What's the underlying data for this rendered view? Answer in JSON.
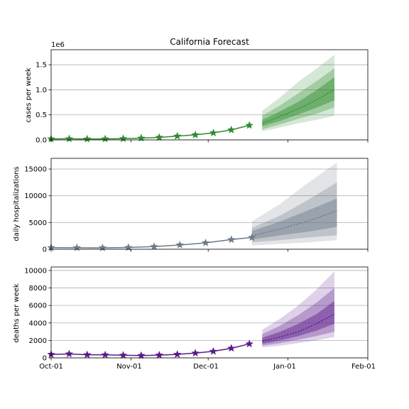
{
  "figure": {
    "title": "California Forecast"
  },
  "x_tick_labels": [
    "Oct-01",
    "Nov-01",
    "Dec-01",
    "Jan-01",
    "Feb-01"
  ],
  "chart_data": [
    {
      "type": "line",
      "name_key": "cases",
      "title": "California Forecast",
      "ylabel": "cases per week",
      "yoffset_label": "1e6",
      "xlim": [
        "2020-10-01",
        "2021-02-01"
      ],
      "ylim": [
        0,
        1800000
      ],
      "yticks": [
        0,
        500000,
        1000000,
        1500000
      ],
      "ytick_labels": [
        "0.0",
        "0.5",
        "1.0",
        "1.5"
      ],
      "grid": "horizontal",
      "color": "#2e8b2e",
      "observed": {
        "x": [
          "2020-10-01",
          "2020-10-08",
          "2020-10-15",
          "2020-10-22",
          "2020-10-29",
          "2020-11-05",
          "2020-11-12",
          "2020-11-19",
          "2020-11-26",
          "2020-12-03",
          "2020-12-10",
          "2020-12-17"
        ],
        "y": [
          20000,
          22000,
          18000,
          20000,
          25000,
          35000,
          50000,
          75000,
          100000,
          140000,
          200000,
          290000
        ]
      },
      "forecast": {
        "x": [
          "2020-12-22",
          "2020-12-29",
          "2021-01-05",
          "2021-01-12",
          "2021-01-19"
        ],
        "median": [
          330000,
          470000,
          620000,
          800000,
          1000000
        ],
        "band_50": [
          [
            270000,
            400000
          ],
          [
            380000,
            570000
          ],
          [
            510000,
            760000
          ],
          [
            640000,
            990000
          ],
          [
            790000,
            1250000
          ]
        ],
        "band_80": [
          [
            210000,
            480000
          ],
          [
            310000,
            690000
          ],
          [
            420000,
            930000
          ],
          [
            520000,
            1170000
          ],
          [
            650000,
            1430000
          ]
        ],
        "band_95": [
          [
            170000,
            580000
          ],
          [
            250000,
            850000
          ],
          [
            330000,
            1160000
          ],
          [
            400000,
            1420000
          ],
          [
            480000,
            1700000
          ]
        ]
      }
    },
    {
      "type": "line",
      "name_key": "hospitalizations",
      "ylabel": "daily hospitalizations",
      "xlim": [
        "2020-10-01",
        "2021-02-01"
      ],
      "ylim": [
        0,
        17000
      ],
      "yticks": [
        0,
        5000,
        10000,
        15000
      ],
      "ytick_labels": [
        "0",
        "5000",
        "10000",
        "15000"
      ],
      "grid": "horizontal",
      "color": "#6c7a89",
      "observed": {
        "x": [
          "2020-10-01",
          "2020-10-11",
          "2020-10-21",
          "2020-10-31",
          "2020-11-10",
          "2020-11-20",
          "2020-11-30",
          "2020-12-10",
          "2020-12-18"
        ],
        "y": [
          300,
          280,
          260,
          330,
          500,
          800,
          1200,
          1800,
          2200
        ]
      },
      "forecast": {
        "x": [
          "2020-12-18",
          "2020-12-29",
          "2021-01-09",
          "2021-01-20"
        ],
        "median": [
          2500,
          3800,
          5300,
          7200
        ],
        "band_50": [
          [
            1800,
            3400
          ],
          [
            2600,
            5200
          ],
          [
            3300,
            7300
          ],
          [
            4200,
            9500
          ]
        ],
        "band_80": [
          [
            1300,
            4000
          ],
          [
            1700,
            6300
          ],
          [
            2200,
            9300
          ],
          [
            2600,
            12500
          ]
        ],
        "band_95": [
          [
            700,
            5200
          ],
          [
            1000,
            8500
          ],
          [
            1300,
            12500
          ],
          [
            1700,
            16200
          ]
        ]
      }
    },
    {
      "type": "line",
      "name_key": "deaths",
      "ylabel": "deaths per week",
      "xlim": [
        "2020-10-01",
        "2021-02-01"
      ],
      "ylim": [
        0,
        10400
      ],
      "yticks": [
        0,
        2000,
        4000,
        6000,
        8000,
        10000
      ],
      "ytick_labels": [
        "0",
        "2000",
        "4000",
        "6000",
        "8000",
        "10000"
      ],
      "grid": "horizontal",
      "color": "#5a1a8a",
      "observed": {
        "x": [
          "2020-10-01",
          "2020-10-08",
          "2020-10-15",
          "2020-10-22",
          "2020-10-29",
          "2020-11-05",
          "2020-11-12",
          "2020-11-19",
          "2020-11-26",
          "2020-12-03",
          "2020-12-10",
          "2020-12-17"
        ],
        "y": [
          400,
          450,
          360,
          350,
          300,
          270,
          320,
          400,
          550,
          750,
          1100,
          1600
        ]
      },
      "forecast": {
        "x": [
          "2020-12-22",
          "2020-12-29",
          "2021-01-05",
          "2021-01-12",
          "2021-01-19"
        ],
        "median": [
          1900,
          2400,
          3000,
          3900,
          5000
        ],
        "band_50": [
          [
            1600,
            2300
          ],
          [
            2000,
            3000
          ],
          [
            2500,
            3900
          ],
          [
            3100,
            5000
          ],
          [
            3900,
            6500
          ]
        ],
        "band_80": [
          [
            1400,
            2700
          ],
          [
            1700,
            3700
          ],
          [
            2100,
            4900
          ],
          [
            2500,
            6300
          ],
          [
            3000,
            8000
          ]
        ],
        "band_95": [
          [
            1200,
            3200
          ],
          [
            1400,
            4500
          ],
          [
            1700,
            6000
          ],
          [
            2000,
            7800
          ],
          [
            2400,
            9900
          ]
        ]
      }
    }
  ]
}
